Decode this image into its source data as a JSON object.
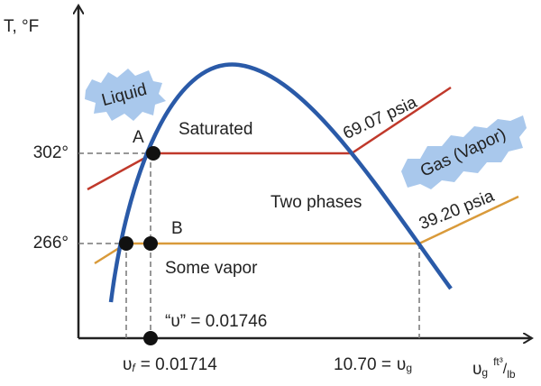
{
  "axes": {
    "y_label": "T, °F",
    "x_label": {
      "symbol": "υ",
      "subscript": "g",
      "unit_num": "ft³",
      "unit_den": "lb"
    }
  },
  "temperatures": [
    "302°",
    "266°"
  ],
  "regions": {
    "liquid": "Liquid",
    "two_phases": "Two phases",
    "gas": "Gas (Vapor)"
  },
  "points": {
    "a": "A",
    "b": "B"
  },
  "annotations": {
    "saturated": "Saturated",
    "some_vapor": "Some vapor"
  },
  "pressures": [
    "69.07 psia",
    "39.20 psia"
  ],
  "volumes": {
    "quoted": "“υ” = 0.01746",
    "vf": {
      "symbol": "υ",
      "subscript": "f",
      "value": "= 0.01714"
    },
    "vg": {
      "value": "10.70 =",
      "symbol": "υ",
      "subscript": "g"
    }
  }
}
